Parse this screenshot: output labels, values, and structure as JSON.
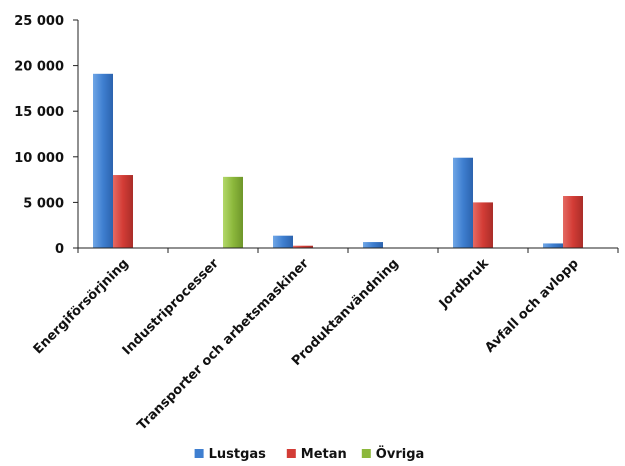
{
  "chart_data": {
    "type": "bar",
    "title": "",
    "xlabel": "",
    "ylabel": "",
    "categories": [
      "Energiförsörjning",
      "Industriprocesser",
      "Transporter och arbetsmaskiner",
      "Produktanvändning",
      "Jordbruk",
      "Avfall och avlopp"
    ],
    "series": [
      {
        "name": "Lustgas",
        "color": "#3F7FD0",
        "values": [
          19100,
          0,
          1350,
          650,
          9900,
          500
        ]
      },
      {
        "name": "Metan",
        "color": "#D33C36",
        "values": [
          8000,
          0,
          250,
          0,
          5000,
          5700
        ]
      },
      {
        "name": "Övriga",
        "color": "#8CB83C",
        "values": [
          0,
          7800,
          0,
          0,
          0,
          0
        ]
      }
    ],
    "ylim": [
      0,
      25000
    ],
    "y_ticks": [
      0,
      5000,
      10000,
      15000,
      20000,
      25000
    ],
    "y_tick_labels": [
      "0",
      "5 000",
      "10 000",
      "15 000",
      "20 000",
      "25 000"
    ],
    "grid": false,
    "legend_position": "bottom"
  }
}
